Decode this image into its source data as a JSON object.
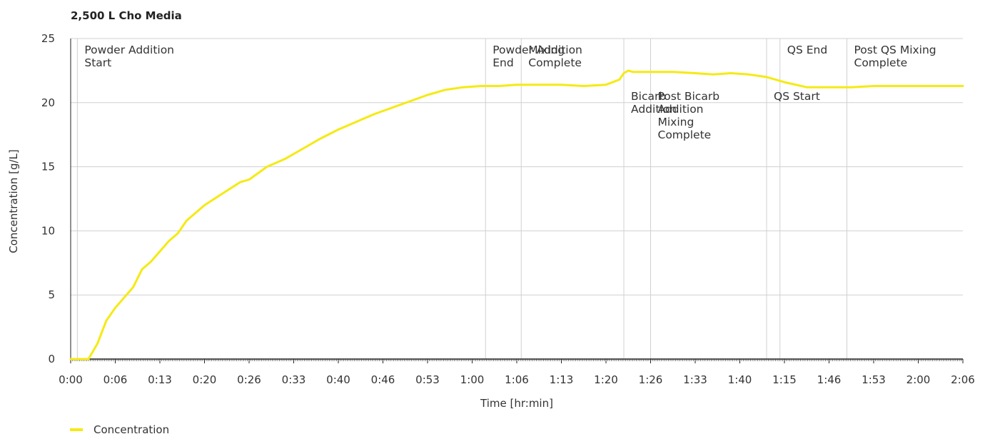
{
  "chart_data": {
    "type": "line",
    "title": "2,500 L Cho Media",
    "xlabel": "Time [hr:min]",
    "ylabel": "Concentration  [g/L]",
    "ylim": [
      0,
      25
    ],
    "yticks": [
      "0",
      "5",
      "10",
      "15",
      "20",
      "25"
    ],
    "xticks": [
      "0:00",
      "0:06",
      "0:13",
      "0:20",
      "0:26",
      "0:33",
      "0:40",
      "0:46",
      "0:53",
      "1:00",
      "1:06",
      "1:13",
      "1:20",
      "1:26",
      "1:33",
      "1:40",
      "1:15",
      "1:46",
      "1:53",
      "2:00",
      "2:06"
    ],
    "xlim": [
      0,
      20
    ],
    "grid": true,
    "legend": "bottom-left",
    "colors": {
      "line": "#f5ea14",
      "grid": "#d0d0d0",
      "axis": "#222222"
    },
    "series": [
      {
        "name": "Concentration",
        "x": [
          0,
          0.4,
          0.45,
          0.6,
          0.8,
          1.0,
          1.2,
          1.4,
          1.6,
          1.8,
          2.0,
          2.2,
          2.4,
          2.6,
          3.0,
          3.4,
          3.8,
          4.0,
          4.4,
          4.8,
          5.2,
          5.6,
          6.0,
          6.4,
          6.8,
          7.2,
          7.6,
          8.0,
          8.4,
          8.8,
          9.2,
          9.6,
          10.0,
          10.5,
          11.0,
          11.5,
          12.0,
          12.3,
          12.4,
          12.5,
          12.6,
          13.0,
          13.5,
          14.0,
          14.4,
          14.8,
          15.2,
          15.6,
          16.0,
          16.5,
          17.0,
          17.5,
          18.0,
          18.5,
          19.0,
          19.5,
          20.0
        ],
        "values": [
          0,
          0,
          0.3,
          1.2,
          3.0,
          4.0,
          4.8,
          5.6,
          7.0,
          7.6,
          8.4,
          9.2,
          9.8,
          10.8,
          12.0,
          12.9,
          13.8,
          14.0,
          15.0,
          15.6,
          16.4,
          17.2,
          17.9,
          18.5,
          19.1,
          19.6,
          20.1,
          20.6,
          21.0,
          21.2,
          21.3,
          21.3,
          21.4,
          21.4,
          21.4,
          21.3,
          21.4,
          21.8,
          22.3,
          22.5,
          22.4,
          22.4,
          22.4,
          22.3,
          22.2,
          22.3,
          22.2,
          22.0,
          21.6,
          21.2,
          21.2,
          21.2,
          21.3,
          21.3,
          21.3,
          21.3,
          21.3
        ]
      }
    ],
    "annotations": [
      {
        "x": 0.15,
        "lines": [
          "Powder Addition",
          "Start"
        ],
        "row": 1
      },
      {
        "x": 9.3,
        "lines": [
          "Powder Addition",
          "End"
        ],
        "row": 1
      },
      {
        "x": 10.1,
        "lines": [
          "Mixing",
          "Complete"
        ],
        "row": 1
      },
      {
        "x": 12.4,
        "lines": [
          "Bicarb",
          "Addition"
        ],
        "row": 2
      },
      {
        "x": 13.0,
        "lines": [
          "Post Bicarb",
          "Addition",
          "Mixing",
          "Complete"
        ],
        "row": 2
      },
      {
        "x": 15.6,
        "lines": [
          "QS Start"
        ],
        "row": 2
      },
      {
        "x": 15.9,
        "lines": [
          "QS End"
        ],
        "row": 1
      },
      {
        "x": 17.4,
        "lines": [
          "Post QS Mixing",
          "Complete"
        ],
        "row": 1
      }
    ]
  }
}
